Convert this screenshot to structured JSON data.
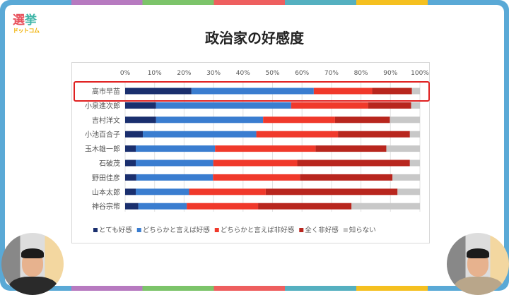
{
  "logo": {
    "line1a": "選",
    "line1b": "挙",
    "line2": "ドットコム"
  },
  "chart_data": {
    "type": "bar",
    "orientation": "horizontal-stacked-100",
    "title": "政治家の好感度",
    "xlim": [
      0,
      100
    ],
    "xticks": [
      "0%",
      "10%",
      "20%",
      "30%",
      "40%",
      "50%",
      "60%",
      "70%",
      "80%",
      "90%",
      "100%"
    ],
    "categories": [
      "高市早苗",
      "小泉進次郎",
      "吉村洋文",
      "小池百合子",
      "玉木雄一郎",
      "石破茂",
      "野田佳彦",
      "山本太郎",
      "神谷宗幣"
    ],
    "highlighted": "高市早苗",
    "series": [
      {
        "name": "とても好感",
        "color": "#1a2f6e",
        "values": [
          22.5,
          10.5,
          10.5,
          6,
          3.6,
          3.6,
          3.8,
          3.6,
          4.5
        ]
      },
      {
        "name": "どちらかと言えば好感",
        "color": "#3a7dd0",
        "values": [
          41.5,
          45.8,
          36.3,
          38.5,
          26.9,
          26.3,
          26,
          18.1,
          16.4
        ]
      },
      {
        "name": "どちらかと言えば非好感",
        "color": "#f0392b",
        "values": [
          19.8,
          26.1,
          24.4,
          27.7,
          34.1,
          28.5,
          29.5,
          26,
          24.2
        ]
      },
      {
        "name": "全く非好感",
        "color": "#b8261e",
        "values": [
          13.5,
          14.6,
          18.6,
          24.4,
          24,
          38.2,
          31.4,
          44.7,
          31.7
        ]
      },
      {
        "name": "知らない",
        "color": "#c8c8c8",
        "values": [
          2.7,
          3,
          10.2,
          3.4,
          11.4,
          3.4,
          9.3,
          7.6,
          23.2
        ]
      }
    ],
    "legend": "bottom"
  }
}
